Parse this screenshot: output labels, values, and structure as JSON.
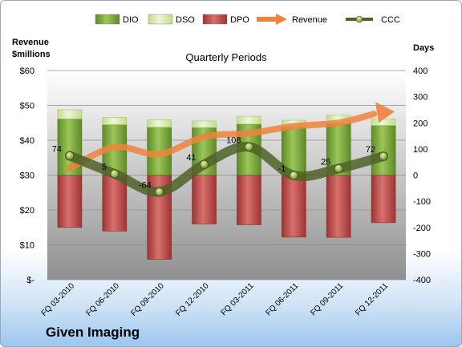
{
  "company": "Given Imaging",
  "chart_data": {
    "type": "bar",
    "title": "Quarterly Periods",
    "ylabel_left": "Revenue\n$millions",
    "ylabel_right": "Days",
    "categories": [
      "FQ 03-2010",
      "FQ 06-2010",
      "FQ 09-2010",
      "FQ 12-2010",
      "FQ 03-2011",
      "FQ 06-2011",
      "FQ 09-2011",
      "FQ 12-2011"
    ],
    "left_axis": {
      "min": 0,
      "max": 60,
      "step": 10,
      "tick_labels": [
        "$-",
        "$10",
        "$20",
        "$30",
        "$40",
        "$50",
        "$60"
      ]
    },
    "right_axis": {
      "min": -400,
      "max": 400,
      "step": 100,
      "tick_labels": [
        "-400",
        "-300",
        "-200",
        "-100",
        "0",
        "100",
        "200",
        "300",
        "400"
      ]
    },
    "legend": {
      "position": "top",
      "items": [
        "DIO",
        "DSO",
        "DPO",
        "Revenue",
        "CCC"
      ]
    },
    "series": [
      {
        "name": "DIO",
        "axis": "right",
        "kind": "stacked-bar",
        "color": "#7aa83a",
        "values": [
          215,
          193,
          183,
          182,
          195,
          185,
          199,
          190
        ]
      },
      {
        "name": "DSO",
        "axis": "right",
        "kind": "stacked-bar",
        "color": "#d6e9a8",
        "values": [
          35,
          28,
          29,
          25,
          30,
          25,
          30,
          25
        ]
      },
      {
        "name": "DPO",
        "axis": "right",
        "kind": "bar-negative",
        "color": "#c0504d",
        "values": [
          -200,
          -214,
          -322,
          -187,
          -190,
          -237,
          -238,
          -182
        ]
      },
      {
        "name": "Revenue",
        "axis": "left",
        "kind": "line",
        "color": "#f0823c",
        "values": [
          32,
          38,
          36,
          41,
          42,
          44,
          45,
          48
        ]
      },
      {
        "name": "CCC",
        "axis": "right",
        "kind": "line",
        "color": "#4f6228",
        "values": [
          74,
          5,
          -64,
          41,
          108,
          -1,
          25,
          72
        ],
        "labels": [
          "74",
          "5",
          "-64",
          "41",
          "108",
          "-1",
          "25",
          "72"
        ]
      }
    ]
  }
}
